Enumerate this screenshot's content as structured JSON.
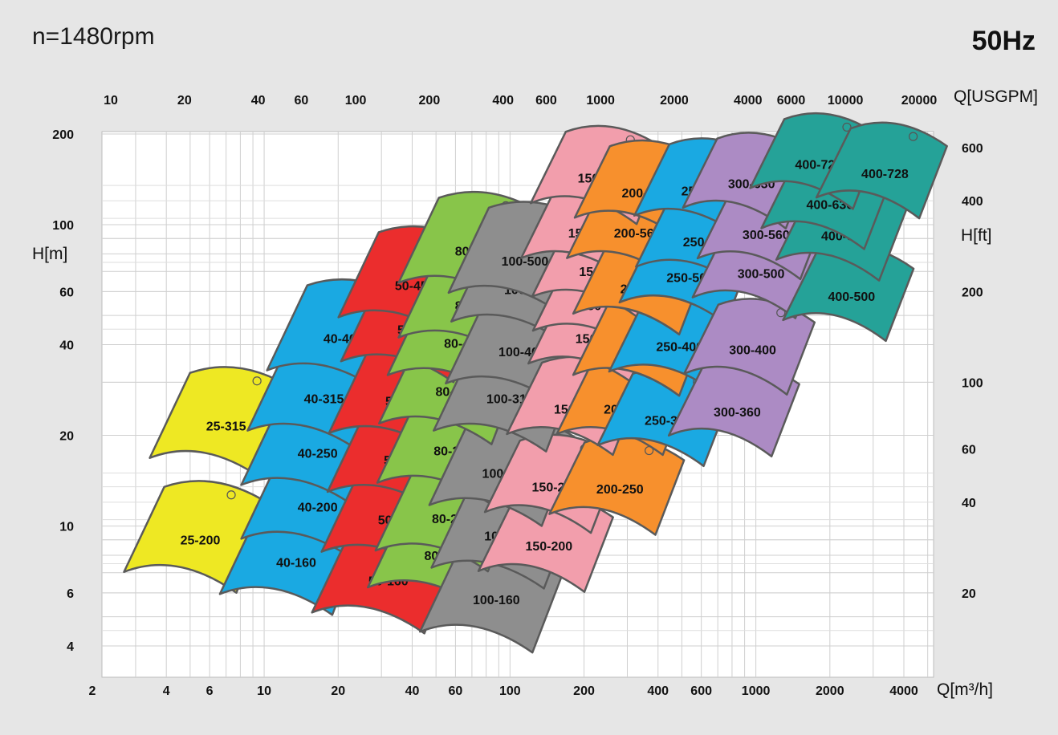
{
  "chart_data": {
    "type": "pump-performance-chart",
    "title": "n=1480rpm",
    "frequency": "50Hz",
    "x_bottom": {
      "label": "Q[m³/h]",
      "scale": "log",
      "range": [
        2,
        5000
      ],
      "ticks": [
        2,
        4,
        6,
        10,
        20,
        40,
        60,
        100,
        200,
        400,
        600,
        1000,
        2000,
        4000
      ]
    },
    "x_top": {
      "label": "Q[USGPM]",
      "scale": "log",
      "ticks": [
        10,
        20,
        40,
        60,
        100,
        200,
        400,
        600,
        1000,
        2000,
        4000,
        6000,
        10000,
        20000
      ]
    },
    "y_left": {
      "label": "H[m]",
      "scale": "log",
      "range": [
        3,
        200
      ],
      "ticks": [
        4,
        6,
        10,
        20,
        40,
        60,
        100,
        200
      ]
    },
    "y_right": {
      "label": "H[ft]",
      "scale": "log",
      "ticks": [
        20,
        40,
        60,
        100,
        200,
        400,
        600
      ]
    },
    "grid": true,
    "pump_regions": [
      {
        "model": "25-200",
        "q": 5.5,
        "h": 9.0,
        "color": "#eee823"
      },
      {
        "model": "25-315",
        "q": 7.0,
        "h": 21.5,
        "color": "#eee823"
      },
      {
        "model": "40-160",
        "q": 13.5,
        "h": 7.6,
        "color": "#1aa9e2"
      },
      {
        "model": "40-200",
        "q": 16.5,
        "h": 11.6,
        "color": "#1aa9e2"
      },
      {
        "model": "40-250",
        "q": 16.5,
        "h": 17.5,
        "color": "#1aa9e2"
      },
      {
        "model": "40-315",
        "q": 17.5,
        "h": 26.5,
        "color": "#1aa9e2"
      },
      {
        "model": "40-400",
        "q": 21.0,
        "h": 42.0,
        "color": "#1aa9e2"
      },
      {
        "model": "50-160",
        "q": 32.0,
        "h": 6.6,
        "color": "#eb2d2d"
      },
      {
        "model": "50-200",
        "q": 35.0,
        "h": 10.5,
        "color": "#eb2d2d"
      },
      {
        "model": "50-250",
        "q": 37.0,
        "h": 16.6,
        "color": "#eb2d2d"
      },
      {
        "model": "50-315",
        "q": 37.5,
        "h": 26.0,
        "color": "#eb2d2d"
      },
      {
        "model": "50-400",
        "q": 42.0,
        "h": 45.0,
        "color": "#eb2d2d"
      },
      {
        "model": "50-450",
        "q": 41.0,
        "h": 63.0,
        "color": "#eb2d2d"
      },
      {
        "model": "80-160",
        "q": 54.0,
        "h": 8.0,
        "color": "#88c54a"
      },
      {
        "model": "80-200",
        "q": 58.0,
        "h": 10.6,
        "color": "#88c54a"
      },
      {
        "model": "80-250",
        "q": 59.0,
        "h": 17.8,
        "color": "#88c54a"
      },
      {
        "model": "80-315",
        "q": 60.0,
        "h": 28.0,
        "color": "#88c54a"
      },
      {
        "model": "80-400",
        "q": 65.0,
        "h": 40.5,
        "color": "#88c54a"
      },
      {
        "model": "80-450",
        "q": 72.0,
        "h": 54.0,
        "color": "#88c54a"
      },
      {
        "model": "80-500",
        "q": 72.0,
        "h": 82.0,
        "color": "#88c54a"
      },
      {
        "model": "100-160",
        "q": 88.0,
        "h": 5.7,
        "color": "#8e8e8e"
      },
      {
        "model": "100-200",
        "q": 98.0,
        "h": 9.3,
        "color": "#8e8e8e"
      },
      {
        "model": "100-250",
        "q": 96.0,
        "h": 15.0,
        "color": "#8e8e8e"
      },
      {
        "model": "100-315",
        "q": 100.0,
        "h": 26.5,
        "color": "#8e8e8e"
      },
      {
        "model": "100-400",
        "q": 112.0,
        "h": 38.0,
        "color": "#8e8e8e"
      },
      {
        "model": "100-450",
        "q": 118.0,
        "h": 61.0,
        "color": "#8e8e8e"
      },
      {
        "model": "100-500",
        "q": 115.0,
        "h": 76.0,
        "color": "#8e8e8e"
      },
      {
        "model": "150-200",
        "q": 144.0,
        "h": 8.6,
        "color": "#f29eac"
      },
      {
        "model": "150-250",
        "q": 153.0,
        "h": 13.5,
        "color": "#f29eac"
      },
      {
        "model": "150-315",
        "q": 188.0,
        "h": 24.5,
        "color": "#f29eac"
      },
      {
        "model": "150-400",
        "q": 230.0,
        "h": 42.0,
        "color": "#f29eac"
      },
      {
        "model": "150-450",
        "q": 240.0,
        "h": 54.0,
        "color": "#f29eac"
      },
      {
        "model": "150-500",
        "q": 238.0,
        "h": 70.0,
        "color": "#f29eac"
      },
      {
        "model": "150-560",
        "q": 215.0,
        "h": 94.0,
        "color": "#f29eac"
      },
      {
        "model": "150-630",
        "q": 235.0,
        "h": 143.0,
        "color": "#f29eac"
      },
      {
        "model": "200-250",
        "q": 280.0,
        "h": 13.3,
        "color": "#f7902d"
      },
      {
        "model": "200-290",
        "q": 300.0,
        "h": 24.5,
        "color": "#f7902d"
      },
      {
        "model": "200-400",
        "q": 350.0,
        "h": 38.5,
        "color": "#f7902d"
      },
      {
        "model": "200-450",
        "q": 350.0,
        "h": 61.5,
        "color": "#f7902d"
      },
      {
        "model": "200-560",
        "q": 330.0,
        "h": 94.0,
        "color": "#f7902d"
      },
      {
        "model": "200-630",
        "q": 355.0,
        "h": 128.0,
        "color": "#f7902d"
      },
      {
        "model": "250-315",
        "q": 440.0,
        "h": 22.5,
        "color": "#1aa9e2"
      },
      {
        "model": "250-400",
        "q": 490.0,
        "h": 39.5,
        "color": "#1aa9e2"
      },
      {
        "model": "250-500",
        "q": 540.0,
        "h": 67.0,
        "color": "#1aa9e2"
      },
      {
        "model": "250-550",
        "q": 630.0,
        "h": 88.0,
        "color": "#1aa9e2"
      },
      {
        "model": "250-630",
        "q": 620.0,
        "h": 130.0,
        "color": "#1aa9e2"
      },
      {
        "model": "300-360",
        "q": 840.0,
        "h": 24.0,
        "color": "#ac8bc4"
      },
      {
        "model": "300-400",
        "q": 970.0,
        "h": 38.5,
        "color": "#ac8bc4"
      },
      {
        "model": "300-500",
        "q": 1050.0,
        "h": 69.0,
        "color": "#ac8bc4"
      },
      {
        "model": "300-560",
        "q": 1100.0,
        "h": 93.0,
        "color": "#ac8bc4"
      },
      {
        "model": "300-630",
        "q": 960.0,
        "h": 137.0,
        "color": "#ac8bc4"
      },
      {
        "model": "400-500",
        "q": 2450.0,
        "h": 58.0,
        "color": "#25a298"
      },
      {
        "model": "400-560",
        "q": 2300.0,
        "h": 92.0,
        "color": "#25a298"
      },
      {
        "model": "400-630",
        "q": 2000.0,
        "h": 117.0,
        "color": "#25a298"
      },
      {
        "model": "400-720",
        "q": 1800.0,
        "h": 159.0,
        "color": "#25a298"
      },
      {
        "model": "400-728",
        "q": 3350.0,
        "h": 148.0,
        "color": "#25a298"
      }
    ]
  }
}
